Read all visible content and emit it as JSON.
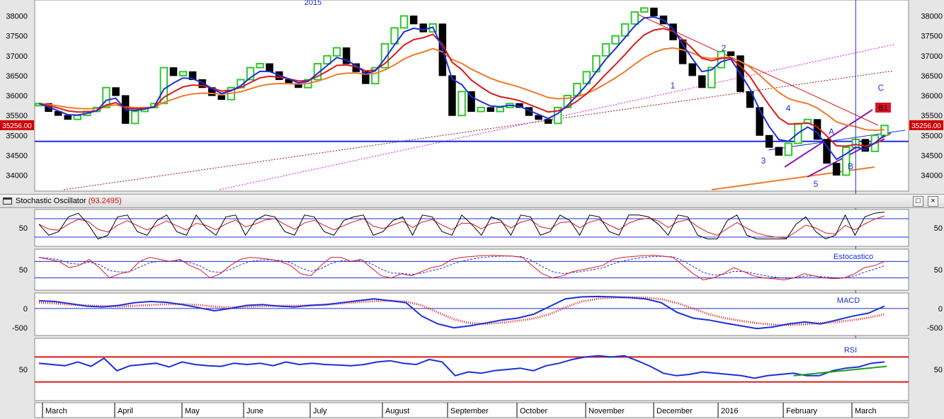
{
  "price_chart": {
    "year_label": "2015",
    "y_ticks": [
      "38000",
      "37500",
      "37000",
      "36500",
      "36000",
      "35500",
      "35000",
      "34500",
      "34000"
    ],
    "last_price_label": "35256.00",
    "wave_labels": [
      "1",
      "2",
      "3",
      "4",
      "5",
      "A",
      "B",
      "C",
      "B1"
    ]
  },
  "stochastic_pane": {
    "title": "Stochastic Oscillator",
    "value": "(93.2495)",
    "y_tick": "50",
    "maximize_icon": "□",
    "close_icon": "×"
  },
  "estocastico_pane": {
    "label": "Estocastico",
    "y_tick": "50"
  },
  "macd_pane": {
    "label": "MACD",
    "y_ticks": [
      "0",
      "-500"
    ]
  },
  "rsi_pane": {
    "label": "RSI",
    "y_tick": "50"
  },
  "x_axis": {
    "months": [
      "March",
      "April",
      "May",
      "June",
      "July",
      "August",
      "September",
      "October",
      "November",
      "December",
      "2016",
      "February",
      "March"
    ]
  },
  "chart_data": [
    {
      "type": "line",
      "title": "",
      "y_label": "",
      "ylim": [
        33600,
        38400
      ],
      "series": [
        {
          "name": "",
          "values": [
            35800,
            35600,
            35500,
            35400,
            35500,
            35600,
            35700,
            36200,
            36000,
            35300,
            35600,
            35700,
            35800,
            36700,
            36500,
            36600,
            36400,
            36200,
            36000,
            35900,
            36200,
            36400,
            36700,
            36800,
            36600,
            36400,
            36300,
            36200,
            36400,
            36800,
            37000,
            37200,
            36800,
            36600,
            36300,
            36700,
            37300,
            37700,
            38000,
            37800,
            37600,
            37800,
            36500,
            35500,
            36100,
            35600,
            35700,
            35600,
            35700,
            35800,
            35700,
            35500,
            35400,
            35300,
            35700,
            36000,
            36300,
            36600,
            37000,
            37300,
            37500,
            37800,
            38100,
            38200,
            38000,
            37800,
            37400,
            36800,
            36500,
            36200,
            36700,
            37100,
            37000,
            36100,
            35700,
            35000,
            34700,
            34500,
            34800,
            35300,
            35400,
            34900,
            34300,
            34000,
            34700,
            34900,
            34600,
            35000,
            35250
          ]
        }
      ],
      "colors": {
        "candle_up": "#2ec82e",
        "candle_down": "#000000",
        "ma_fast": "#1c2fd8",
        "ma_mid": "#d81b1b",
        "ma_slow": "#f07a2a",
        "support_line": "#1c2fd8"
      },
      "horizontal_support": 34850,
      "cursor_line_index": 85
    },
    {
      "type": "line",
      "title": "",
      "ylim": [
        0,
        100
      ],
      "series": [
        {
          "name": "",
          "values": [
            60,
            30,
            40,
            80,
            90,
            60,
            20,
            30,
            80,
            85,
            40,
            30,
            70,
            85,
            40,
            30,
            85,
            50,
            30,
            80,
            85,
            30,
            70,
            85,
            80,
            40,
            30,
            85,
            80,
            40,
            30,
            70,
            80,
            85,
            30,
            40,
            70,
            80,
            30,
            85,
            80,
            40,
            30,
            85,
            60,
            30,
            80,
            70,
            30,
            85,
            80,
            30,
            40,
            85,
            70,
            30,
            85,
            80,
            40,
            30,
            85,
            85,
            80,
            60,
            30,
            85,
            80,
            30,
            20,
            20,
            70,
            85,
            30,
            20,
            20,
            20,
            20,
            60,
            80,
            40,
            20,
            30,
            85,
            30,
            80,
            90,
            93
          ]
        }
      ],
      "bands": [
        25,
        75
      ],
      "colors": {
        "k": "#000000",
        "d": "#d81b1b"
      }
    },
    {
      "type": "line",
      "title": "",
      "ylim": [
        0,
        100
      ],
      "series": [
        {
          "name": "",
          "values": [
            80,
            75,
            70,
            55,
            60,
            75,
            55,
            30,
            40,
            45,
            70,
            80,
            75,
            70,
            75,
            60,
            50,
            30,
            40,
            60,
            75,
            80,
            78,
            75,
            70,
            60,
            40,
            35,
            60,
            80,
            80,
            70,
            75,
            55,
            35,
            30,
            40,
            35,
            45,
            55,
            60,
            75,
            80,
            82,
            84,
            85,
            84,
            83,
            80,
            60,
            40,
            30,
            35,
            45,
            50,
            55,
            60,
            75,
            80,
            82,
            84,
            85,
            83,
            80,
            60,
            40,
            25,
            30,
            40,
            55,
            45,
            35,
            30,
            28,
            25,
            30,
            40,
            35,
            30,
            28,
            30,
            40,
            55,
            60,
            70
          ]
        }
      ],
      "bands": [
        30,
        70
      ],
      "colors": {
        "k": "#d81b1b",
        "d": "#1c2fd8"
      }
    },
    {
      "type": "line",
      "title": "",
      "ylim": [
        -700,
        400
      ],
      "series": [
        {
          "name": "",
          "values": [
            200,
            180,
            120,
            60,
            40,
            80,
            150,
            180,
            160,
            100,
            20,
            -60,
            0,
            80,
            100,
            60,
            40,
            80,
            100,
            150,
            200,
            250,
            200,
            150,
            -200,
            -400,
            -500,
            -450,
            -380,
            -300,
            -250,
            -150,
            50,
            250,
            300,
            310,
            300,
            280,
            250,
            150,
            -100,
            -250,
            -300,
            -380,
            -450,
            -520,
            -480,
            -400,
            -350,
            -400,
            -300,
            -200,
            -120,
            60
          ]
        },
        {
          "name": "",
          "values": [
            150,
            130,
            100,
            80,
            60,
            50,
            70,
            90,
            110,
            110,
            90,
            50,
            30,
            40,
            60,
            70,
            70,
            80,
            100,
            130,
            160,
            190,
            200,
            180,
            80,
            -100,
            -280,
            -380,
            -400,
            -370,
            -320,
            -260,
            -150,
            30,
            180,
            250,
            280,
            290,
            280,
            240,
            140,
            0,
            -150,
            -250,
            -320,
            -380,
            -420,
            -430,
            -410,
            -380,
            -350,
            -300,
            -240,
            -150
          ]
        }
      ],
      "colors": {
        "macd": "#1c2fd8",
        "signal": "#d81b1b"
      }
    },
    {
      "type": "line",
      "title": "",
      "ylim": [
        0,
        100
      ],
      "series": [
        {
          "name": "",
          "values": [
            60,
            58,
            56,
            62,
            55,
            68,
            48,
            56,
            58,
            60,
            54,
            62,
            58,
            56,
            55,
            60,
            58,
            60,
            56,
            62,
            58,
            60,
            58,
            57,
            56,
            58,
            62,
            64,
            60,
            58,
            66,
            62,
            40,
            46,
            44,
            48,
            50,
            52,
            48,
            56,
            60,
            66,
            70,
            72,
            70,
            72,
            64,
            55,
            44,
            40,
            42,
            46,
            44,
            42,
            40,
            36,
            40,
            42,
            44,
            40,
            40,
            48,
            52,
            54,
            60,
            62
          ]
        }
      ],
      "bands": [
        30,
        70
      ],
      "trendline": [
        40,
        55
      ],
      "colors": {
        "rsi": "#1c2fd8",
        "band": "#d81b1b",
        "trend": "#1e9e1e"
      }
    }
  ]
}
